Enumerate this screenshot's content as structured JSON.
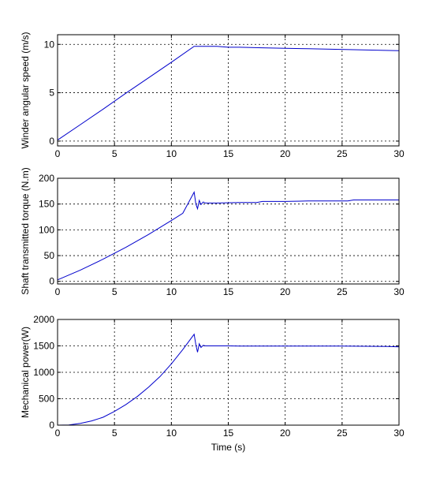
{
  "chart_data": [
    {
      "type": "line",
      "title": "",
      "xlabel": "",
      "ylabel": "Winder angular speed (m/s)",
      "xlim": [
        0,
        30
      ],
      "ylim": [
        -0.5,
        11
      ],
      "xticks": [
        "0",
        "5",
        "10",
        "15",
        "20",
        "25",
        "30"
      ],
      "yticks": [
        "0",
        "5",
        "10"
      ],
      "grid": true,
      "line_color": "#0000cc",
      "series": [
        {
          "x": [
            0,
            2,
            4,
            6,
            8,
            10,
            12,
            12.3,
            14,
            15,
            16,
            18,
            20,
            22,
            24,
            26,
            28,
            30
          ],
          "values": [
            0.1,
            1.7,
            3.3,
            4.95,
            6.55,
            8.15,
            9.8,
            9.8,
            9.8,
            9.7,
            9.7,
            9.65,
            9.6,
            9.55,
            9.5,
            9.45,
            9.4,
            9.35
          ]
        }
      ]
    },
    {
      "type": "line",
      "title": "",
      "xlabel": "",
      "ylabel": "Shaft transmitted torque (N.m)",
      "xlim": [
        0,
        30
      ],
      "ylim": [
        -5,
        200
      ],
      "xticks": [
        "0",
        "5",
        "10",
        "15",
        "20",
        "25",
        "30"
      ],
      "yticks": [
        "0",
        "50",
        "100",
        "150",
        "200"
      ],
      "grid": true,
      "line_color": "#0000cc",
      "series": [
        {
          "x": [
            0,
            2,
            4,
            6,
            8,
            10,
            11,
            12,
            12.15,
            12.3,
            12.45,
            12.6,
            12.8,
            13,
            14,
            16,
            17.5,
            18,
            20,
            22,
            24,
            25.5,
            26,
            28,
            30
          ],
          "values": [
            3,
            22,
            43,
            66,
            91,
            118,
            132,
            173,
            150,
            141,
            157,
            149,
            154,
            152,
            152,
            153,
            153,
            155,
            155,
            156,
            156,
            156,
            158,
            158,
            158
          ]
        }
      ]
    },
    {
      "type": "line",
      "title": "",
      "xlabel": "Time (s)",
      "ylabel": "Mechanical power(W)",
      "xlim": [
        0,
        30
      ],
      "ylim": [
        0,
        2000
      ],
      "xticks": [
        "0",
        "5",
        "10",
        "15",
        "20",
        "25",
        "30"
      ],
      "yticks": [
        "0",
        "500",
        "1000",
        "1500",
        "2000"
      ],
      "grid": true,
      "line_color": "#0000cc",
      "series": [
        {
          "x": [
            0,
            1,
            2,
            3,
            4,
            5,
            6,
            7,
            8,
            9,
            10,
            11,
            12,
            12.15,
            12.3,
            12.45,
            12.6,
            12.8,
            13,
            14,
            15,
            16,
            20,
            25,
            29,
            30
          ],
          "values": [
            0,
            5,
            35,
            80,
            150,
            260,
            390,
            540,
            720,
            920,
            1160,
            1430,
            1720,
            1520,
            1380,
            1540,
            1470,
            1510,
            1500,
            1500,
            1500,
            1495,
            1495,
            1495,
            1490,
            1480
          ]
        }
      ]
    }
  ]
}
